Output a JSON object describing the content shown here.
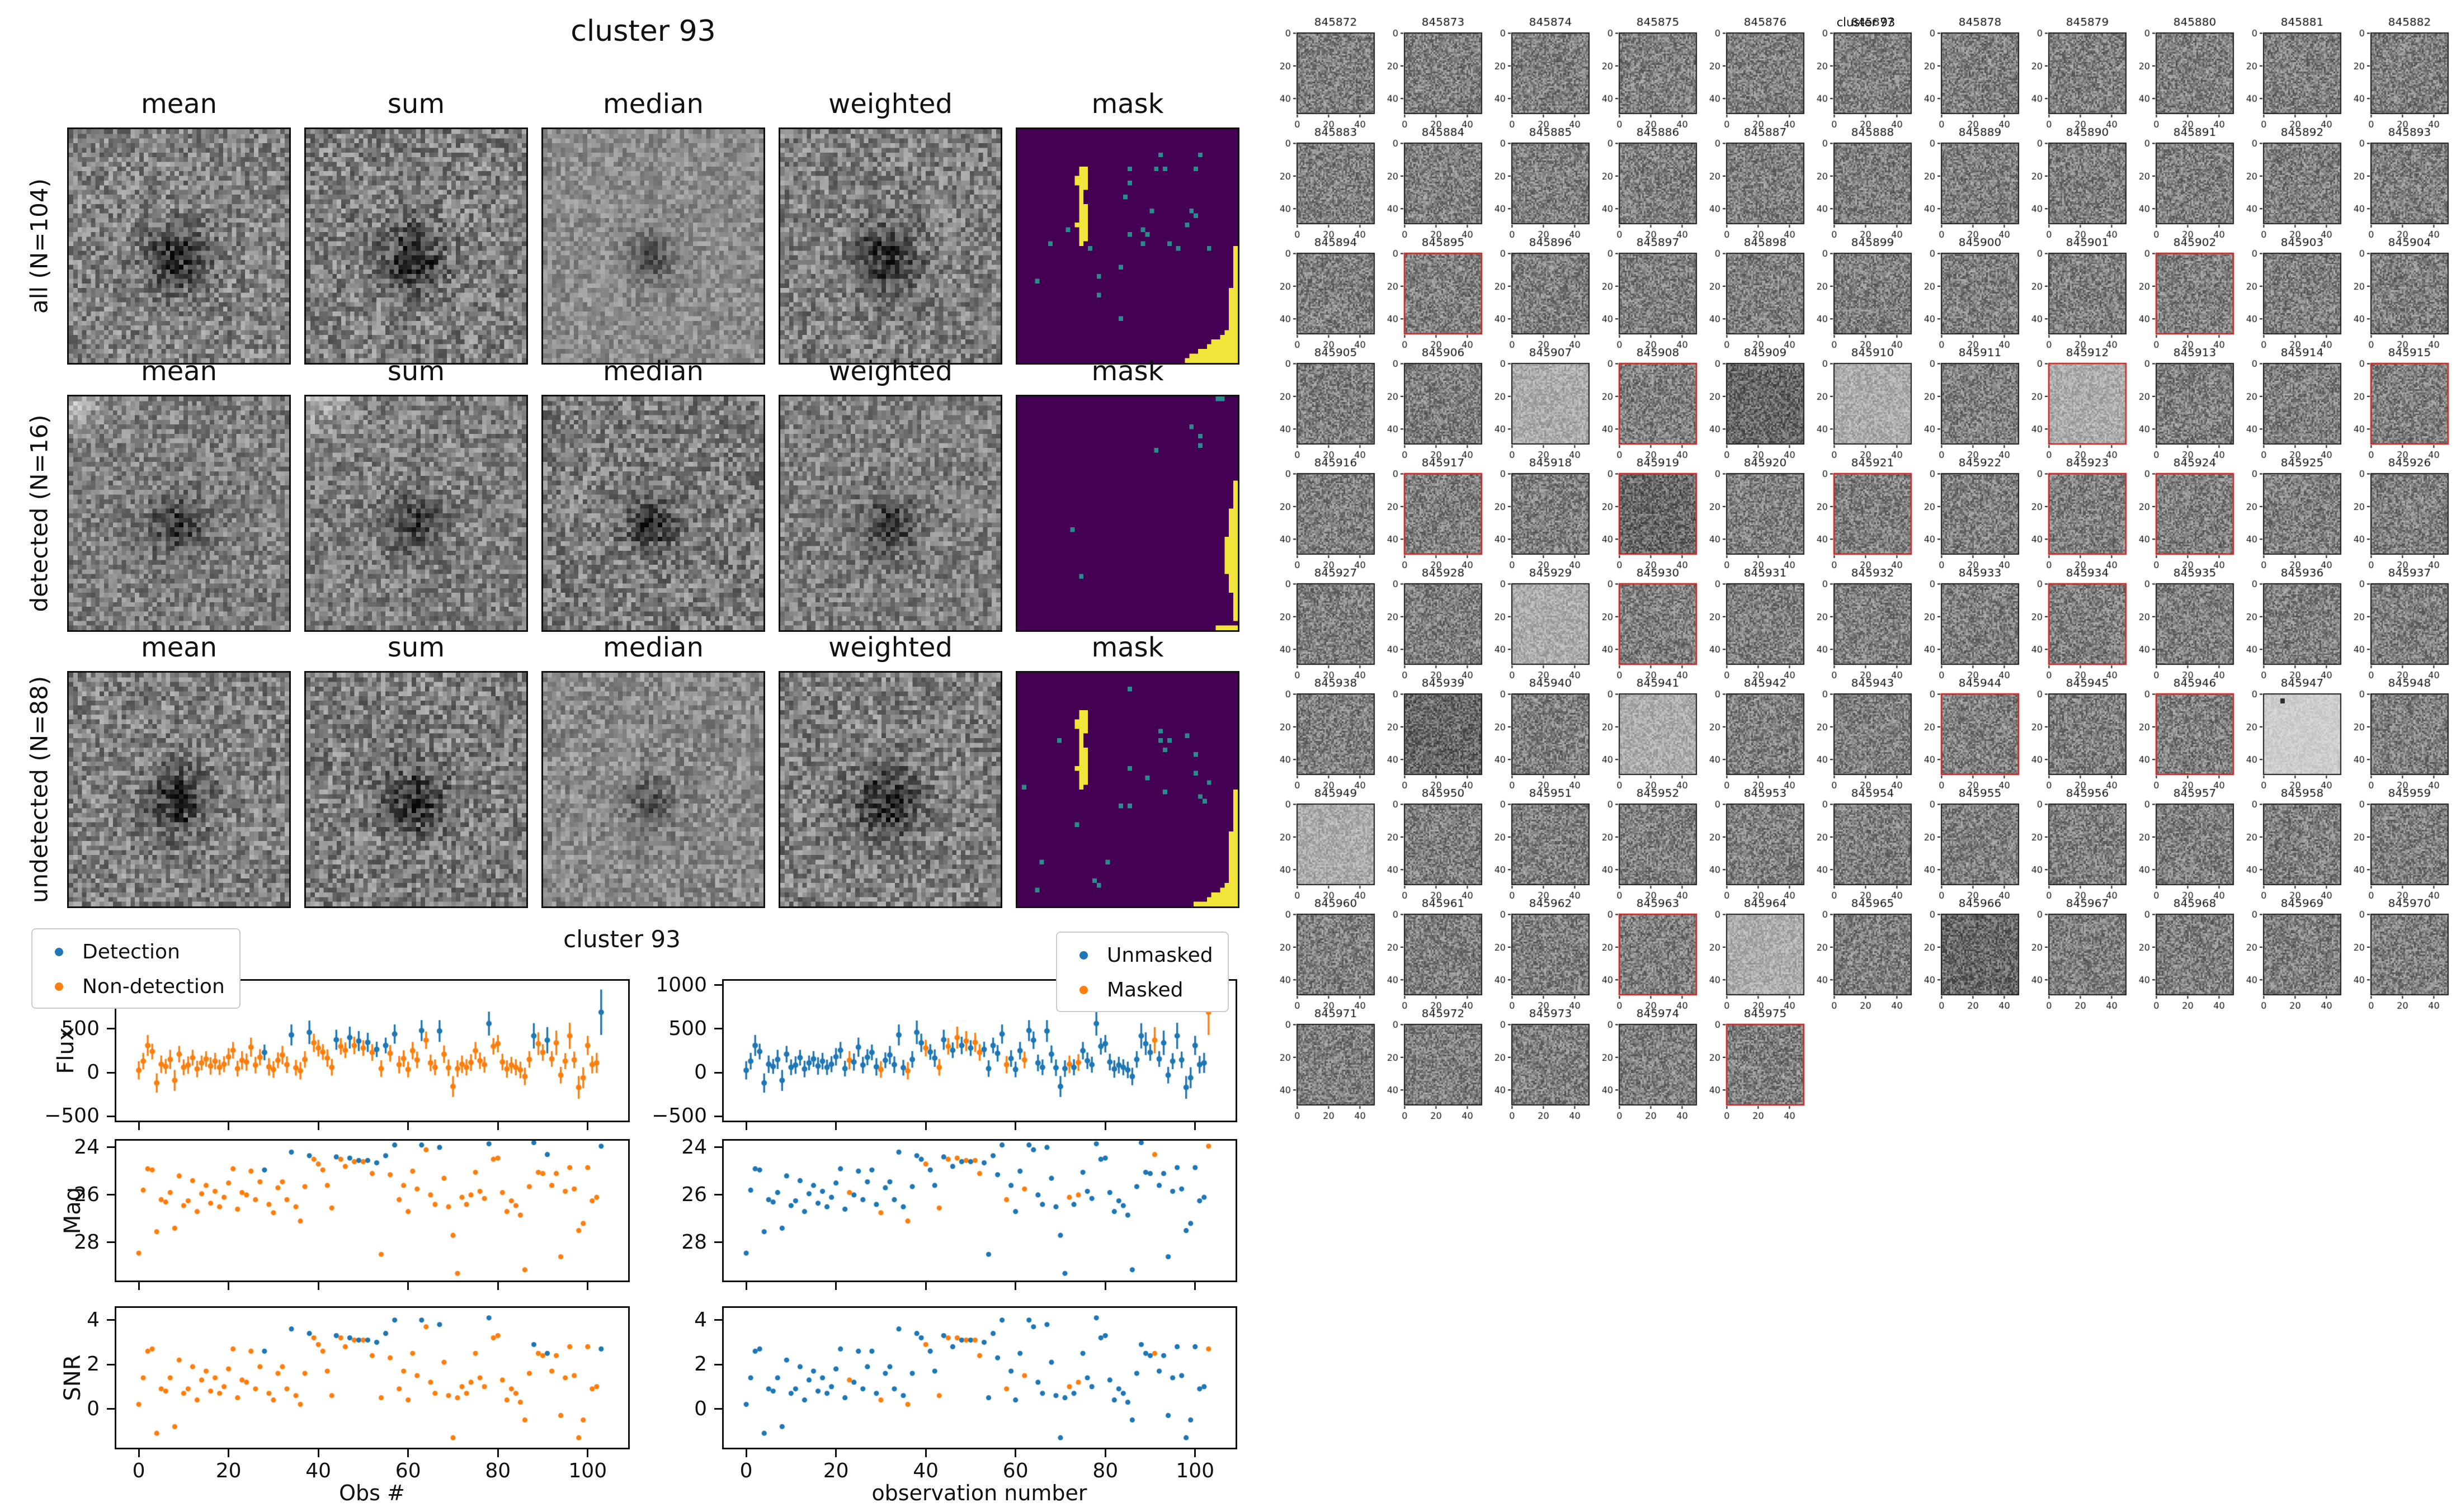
{
  "left_figure": {
    "title": "cluster 93",
    "column_titles": [
      "mean",
      "sum",
      "median",
      "weighted",
      "mask"
    ],
    "rows": [
      {
        "label": "all (N=104)"
      },
      {
        "label": "detected (N=16)"
      },
      {
        "label": "undetected (N=88)"
      }
    ]
  },
  "scatter_figure": {
    "title": "cluster 93",
    "legend_left": [
      "Detection",
      "Non-detection"
    ],
    "legend_right": [
      "Unmasked",
      "Masked"
    ],
    "ylabels": [
      "Flux",
      "Mag",
      "SNR"
    ],
    "xlabel_left": "Obs #",
    "xlabel_right": "observation number",
    "flux_ticks": [
      1000,
      500,
      0,
      -500
    ],
    "mag_ticks": [
      24,
      26,
      28
    ],
    "snr_ticks": [
      4,
      2,
      0
    ],
    "x_ticks": [
      0,
      20,
      40,
      60,
      80,
      100
    ],
    "flux_range": [
      1050,
      -550
    ],
    "mag_range": [
      23.72,
      29.6
    ],
    "snr_range": [
      4.55,
      -1.75
    ],
    "x_range": [
      -5,
      109
    ]
  },
  "chart_data": {
    "type": "scatter",
    "x_is_index": true,
    "n": 104,
    "flux": [
      25,
      130,
      310,
      240,
      -120,
      95,
      70,
      150,
      -90,
      210,
      60,
      85,
      170,
      40,
      110,
      155,
      75,
      130,
      60,
      95,
      180,
      255,
      45,
      140,
      120,
      290,
      85,
      175,
      230,
      65,
      35,
      140,
      200,
      90,
      430,
      55,
      20,
      150,
      460,
      340,
      280,
      235,
      165,
      60,
      375,
      300,
      255,
      400,
      310,
      360,
      280,
      345,
      230,
      265,
      45,
      310,
      220,
      440,
      90,
      160,
      35,
      250,
      145,
      480,
      370,
      110,
      60,
      475,
      210,
      55,
      -160,
      45,
      95,
      60,
      115,
      250,
      135,
      90,
      560,
      300,
      330,
      120,
      40,
      85,
      60,
      30,
      -45,
      150,
      420,
      330,
      230,
      370,
      155,
      340,
      -30,
      130,
      420,
      145,
      -170,
      -60,
      310,
      90,
      110,
      690
    ],
    "flux_err": [
      105,
      95,
      120,
      90,
      110,
      100,
      85,
      110,
      120,
      95,
      90,
      100,
      90,
      95,
      85,
      90,
      100,
      95,
      88,
      92,
      100,
      95,
      90,
      105,
      98,
      110,
      95,
      92,
      90,
      100,
      95,
      90,
      105,
      95,
      120,
      90,
      100,
      95,
      135,
      105,
      95,
      90,
      100,
      95,
      115,
      95,
      90,
      125,
      100,
      115,
      90,
      110,
      95,
      88,
      95,
      90,
      95,
      110,
      100,
      95,
      90,
      100,
      95,
      120,
      100,
      95,
      90,
      125,
      100,
      95,
      120,
      95,
      100,
      92,
      95,
      100,
      95,
      92,
      137,
      95,
      100,
      95,
      100,
      95,
      92,
      95,
      100,
      95,
      145,
      130,
      95,
      150,
      90,
      140,
      95,
      92,
      150,
      95,
      130,
      120,
      110,
      100,
      115,
      260
    ],
    "mag": [
      28.45,
      25.8,
      24.9,
      24.95,
      27.55,
      26.2,
      26.3,
      25.9,
      27.4,
      25.2,
      26.45,
      26.25,
      25.4,
      26.7,
      25.95,
      25.6,
      26.35,
      25.85,
      26.5,
      26.1,
      25.5,
      24.9,
      26.6,
      25.9,
      26.0,
      25.0,
      26.2,
      25.45,
      24.95,
      26.4,
      26.75,
      25.7,
      25.45,
      26.2,
      24.2,
      26.5,
      27.1,
      25.65,
      24.35,
      24.5,
      24.7,
      24.95,
      25.6,
      26.55,
      24.4,
      24.5,
      24.8,
      24.45,
      24.6,
      24.55,
      24.6,
      24.55,
      25.1,
      24.65,
      28.5,
      24.35,
      25.15,
      23.9,
      26.2,
      25.6,
      26.7,
      25.0,
      25.75,
      23.9,
      24.1,
      26.0,
      26.4,
      24.0,
      25.3,
      26.5,
      27.7,
      29.3,
      26.1,
      26.4,
      26.0,
      25.05,
      25.85,
      26.15,
      23.85,
      24.5,
      24.45,
      25.9,
      26.7,
      26.25,
      26.45,
      26.85,
      29.15,
      25.65,
      23.8,
      25.05,
      25.1,
      24.3,
      25.6,
      25.1,
      28.6,
      25.85,
      24.85,
      25.75,
      27.5,
      27.2,
      24.85,
      26.25,
      26.1,
      23.95
    ],
    "snr": [
      0.2,
      1.4,
      2.6,
      2.7,
      -1.1,
      0.9,
      0.8,
      1.4,
      -0.8,
      2.2,
      0.7,
      0.9,
      1.9,
      0.4,
      1.3,
      1.7,
      0.8,
      1.4,
      0.7,
      1.0,
      1.8,
      2.7,
      0.5,
      1.3,
      1.2,
      2.6,
      0.9,
      1.9,
      2.6,
      0.7,
      0.4,
      1.6,
      1.9,
      0.9,
      3.6,
      0.6,
      0.2,
      1.6,
      3.4,
      3.2,
      2.9,
      2.6,
      1.7,
      0.6,
      3.3,
      3.2,
      2.8,
      3.2,
      3.1,
      3.1,
      3.1,
      3.1,
      2.4,
      3.0,
      0.5,
      3.4,
      2.3,
      4.0,
      0.9,
      1.7,
      0.4,
      2.5,
      1.5,
      4.0,
      3.7,
      1.2,
      0.7,
      3.8,
      2.1,
      0.6,
      -1.3,
      0.5,
      1.0,
      0.7,
      1.2,
      2.5,
      1.4,
      1.0,
      4.1,
      3.2,
      3.3,
      1.3,
      0.4,
      0.9,
      0.7,
      0.3,
      -0.5,
      1.6,
      2.9,
      2.5,
      2.4,
      2.5,
      1.7,
      2.4,
      -0.3,
      1.4,
      2.8,
      1.5,
      -1.3,
      -0.5,
      2.8,
      0.9,
      1.0,
      2.7
    ],
    "detected_indices": [
      28,
      34,
      38,
      44,
      47,
      49,
      51,
      53,
      55,
      57,
      63,
      67,
      78,
      88,
      91,
      103
    ],
    "masked_indices": [
      23,
      30,
      36,
      40,
      43,
      45,
      47,
      49,
      51,
      52,
      58,
      62,
      72,
      74,
      91,
      103
    ]
  },
  "thumbnails": {
    "suptitle": "cluster 93",
    "columns": 11,
    "axis_ticks": [
      0,
      20,
      40
    ],
    "ids": [
      845872,
      845873,
      845874,
      845875,
      845876,
      845877,
      845878,
      845879,
      845880,
      845881,
      845882,
      845883,
      845884,
      845885,
      845886,
      845887,
      845888,
      845889,
      845890,
      845891,
      845892,
      845893,
      845894,
      845895,
      845896,
      845897,
      845898,
      845899,
      845900,
      845901,
      845902,
      845903,
      845904,
      845905,
      845906,
      845907,
      845908,
      845909,
      845910,
      845911,
      845912,
      845913,
      845914,
      845915,
      845916,
      845917,
      845918,
      845919,
      845920,
      845921,
      845922,
      845923,
      845924,
      845925,
      845926,
      845927,
      845928,
      845929,
      845930,
      845931,
      845932,
      845933,
      845934,
      845935,
      845936,
      845937,
      845938,
      845939,
      845940,
      845941,
      845942,
      845943,
      845944,
      845945,
      845946,
      845947,
      845948,
      845949,
      845950,
      845951,
      845952,
      845953,
      845954,
      845955,
      845956,
      845957,
      845958,
      845959,
      845960,
      845961,
      845962,
      845963,
      845964,
      845965,
      845966,
      845967,
      845968,
      845969,
      845970,
      845971,
      845972,
      845973,
      845974,
      845975
    ],
    "red_border_ids": [
      845895,
      845902,
      845908,
      845912,
      845915,
      845917,
      845919,
      845921,
      845923,
      845924,
      845930,
      845934,
      845944,
      845946,
      845963,
      845975
    ],
    "light_ids": [
      845907,
      845910,
      845912,
      845929,
      845941,
      845947,
      845949,
      845964
    ],
    "dark_ids": [
      845909,
      845919,
      845939,
      845966
    ],
    "dot_ids": [
      845947
    ]
  },
  "colors": {
    "detection_blue": "#1f77b4",
    "nondetection_orange": "#ff7f0e",
    "mask_purple": "#440154",
    "mask_teal": "#2a8a8c",
    "mask_yellow": "#f2e53a",
    "red_border": "#cc2222",
    "frame": "#111111"
  }
}
